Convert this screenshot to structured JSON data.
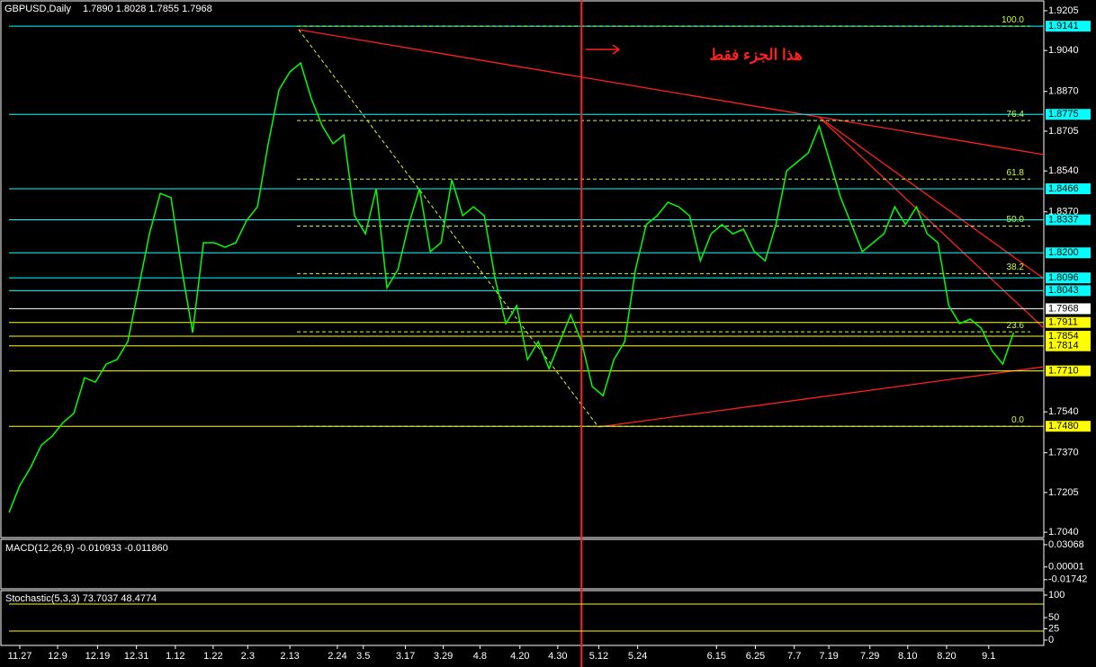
{
  "chart_data": [
    {
      "type": "line",
      "title": "GBPUSD,Daily",
      "subtitle": "1.7890 1.8028 1.7855 1.7968",
      "annotation": "هذا الجزء فقط",
      "color": "#00ff00",
      "values": [
        1.7122,
        1.7234,
        1.7309,
        1.7402,
        1.7439,
        1.7495,
        1.7533,
        1.7682,
        1.7663,
        1.7738,
        1.7757,
        1.7831,
        1.8055,
        1.8279,
        1.8447,
        1.8429,
        1.813,
        1.7869,
        1.8242,
        1.8242,
        1.8223,
        1.8242,
        1.8335,
        1.8391,
        1.8653,
        1.8877,
        1.8951,
        1.8988,
        1.8839,
        1.8727,
        1.8653,
        1.869,
        1.8354,
        1.8279,
        1.8466,
        1.8055,
        1.813,
        1.8317,
        1.8466,
        1.8205,
        1.8242,
        1.8503,
        1.8354,
        1.8391,
        1.8354,
        1.8093,
        1.7906,
        1.7981,
        1.7757,
        1.7831,
        1.7719,
        1.7831,
        1.7943,
        1.7831,
        1.7645,
        1.7607,
        1.7757,
        1.7831,
        1.813,
        1.8317,
        1.8354,
        1.841,
        1.8391,
        1.8354,
        1.8167,
        1.8279,
        1.8317,
        1.8279,
        1.8298,
        1.8205,
        1.8167,
        1.8317,
        1.8541,
        1.8578,
        1.8615,
        1.8727,
        1.8578,
        1.8429,
        1.8317,
        1.8205,
        1.8242,
        1.8279,
        1.8391,
        1.8317,
        1.8391,
        1.8279,
        1.8242,
        1.7981,
        1.7906,
        1.7925,
        1.7887,
        1.7794,
        1.7738,
        1.7869
      ],
      "xlim": [
        0,
        95.8
      ],
      "xticks": [
        {
          "value": 1,
          "label": "11.27"
        },
        {
          "value": 4.5,
          "label": "12.9"
        },
        {
          "value": 8.2,
          "label": "12.19"
        },
        {
          "value": 11.8,
          "label": "12.31"
        },
        {
          "value": 15.4,
          "label": "1.12"
        },
        {
          "value": 18.9,
          "label": "1.22"
        },
        {
          "value": 22.1,
          "label": "2.3"
        },
        {
          "value": 26,
          "label": "2.13"
        },
        {
          "value": 30.4,
          "label": "2.24"
        },
        {
          "value": 32.8,
          "label": "3.5"
        },
        {
          "value": 36.7,
          "label": "3.17"
        },
        {
          "value": 40.2,
          "label": "3.29"
        },
        {
          "value": 43.6,
          "label": "4.8"
        },
        {
          "value": 47.3,
          "label": "4.20"
        },
        {
          "value": 50.8,
          "label": "4.30"
        },
        {
          "value": 54.6,
          "label": "5.12"
        },
        {
          "value": 58.2,
          "label": "5.24"
        },
        {
          "value": 65.5,
          "label": "6.15"
        },
        {
          "value": 69.1,
          "label": "6.25"
        },
        {
          "value": 72.7,
          "label": "7.7"
        },
        {
          "value": 75.9,
          "label": "7.19"
        },
        {
          "value": 79.7,
          "label": "7.29"
        },
        {
          "value": 83.2,
          "label": "8.10"
        },
        {
          "value": 86.8,
          "label": "8.20"
        },
        {
          "value": 90.7,
          "label": "9.1"
        }
      ],
      "ylim": [
        1.7018,
        1.9231
      ],
      "yticks": [
        1.9205,
        {
          "value": 1.904,
          "label": "1.9040"
        },
        {
          "value": 1.887,
          "label": "1.8870"
        },
        1.8705,
        {
          "value": 1.854,
          "label": "1.8540"
        },
        {
          "value": 1.837,
          "label": "1.8370"
        },
        {
          "value": 1.754,
          "label": "1.7540"
        },
        {
          "value": 1.737,
          "label": "1.7370"
        },
        1.7205,
        {
          "value": 1.704,
          "label": "1.7040"
        }
      ],
      "levels": [
        {
          "value": 1.9141,
          "label": "1.9141",
          "color": "#00ffff"
        },
        {
          "value": 1.8775,
          "label": "1.8775",
          "color": "#00ffff"
        },
        {
          "value": 1.8466,
          "label": "1.8466",
          "color": "#00ffff"
        },
        {
          "value": 1.8337,
          "label": "1.8337",
          "color": "#00ffff"
        },
        {
          "value": 1.82,
          "label": "1.8200",
          "color": "#00ffff"
        },
        {
          "value": 1.8096,
          "label": "1.8096",
          "color": "#00ffff"
        },
        {
          "value": 1.8043,
          "label": "1.8043",
          "color": "#00ffff"
        },
        {
          "value": 1.7968,
          "label": "1.7968",
          "color": "#ffffff"
        },
        {
          "value": 1.7911,
          "label": "1.7911",
          "color": "#ffff00"
        },
        {
          "value": 1.7854,
          "label": "1.7854",
          "color": "#ffff00"
        },
        {
          "value": 1.7814,
          "label": "1.7814",
          "color": "#ffff00"
        },
        {
          "value": 1.771,
          "label": "1.7710",
          "color": "#ffff00"
        },
        {
          "value": 1.748,
          "label": "1.7480",
          "color": "#ffff00"
        }
      ],
      "fib_levels": [
        {
          "value": 1.9141,
          "label": "100.0"
        },
        {
          "value": 1.8749,
          "label": "76.4"
        },
        {
          "value": 1.8506,
          "label": "61.8"
        },
        {
          "value": 1.8311,
          "label": "50.0"
        },
        {
          "value": 1.8114,
          "label": "38.2"
        },
        {
          "value": 1.7872,
          "label": "23.6"
        },
        {
          "value": 1.748,
          "label": "0.0"
        }
      ],
      "vline": 53
    },
    {
      "type": "macd",
      "title": "MACD(12,26,9)  -0.010933 -0.011860",
      "ylim": [
        -0.03,
        0.038
      ],
      "yticks": [
        0.03068,
        1e-05,
        -0.01742
      ]
    },
    {
      "type": "stochastic",
      "title": "Stochastic(5,3,3)  73.7037  48.4774",
      "ylim": [
        -12,
        110
      ],
      "yticks": [
        100,
        50,
        25,
        0
      ],
      "levels": [
        80,
        20
      ]
    }
  ]
}
